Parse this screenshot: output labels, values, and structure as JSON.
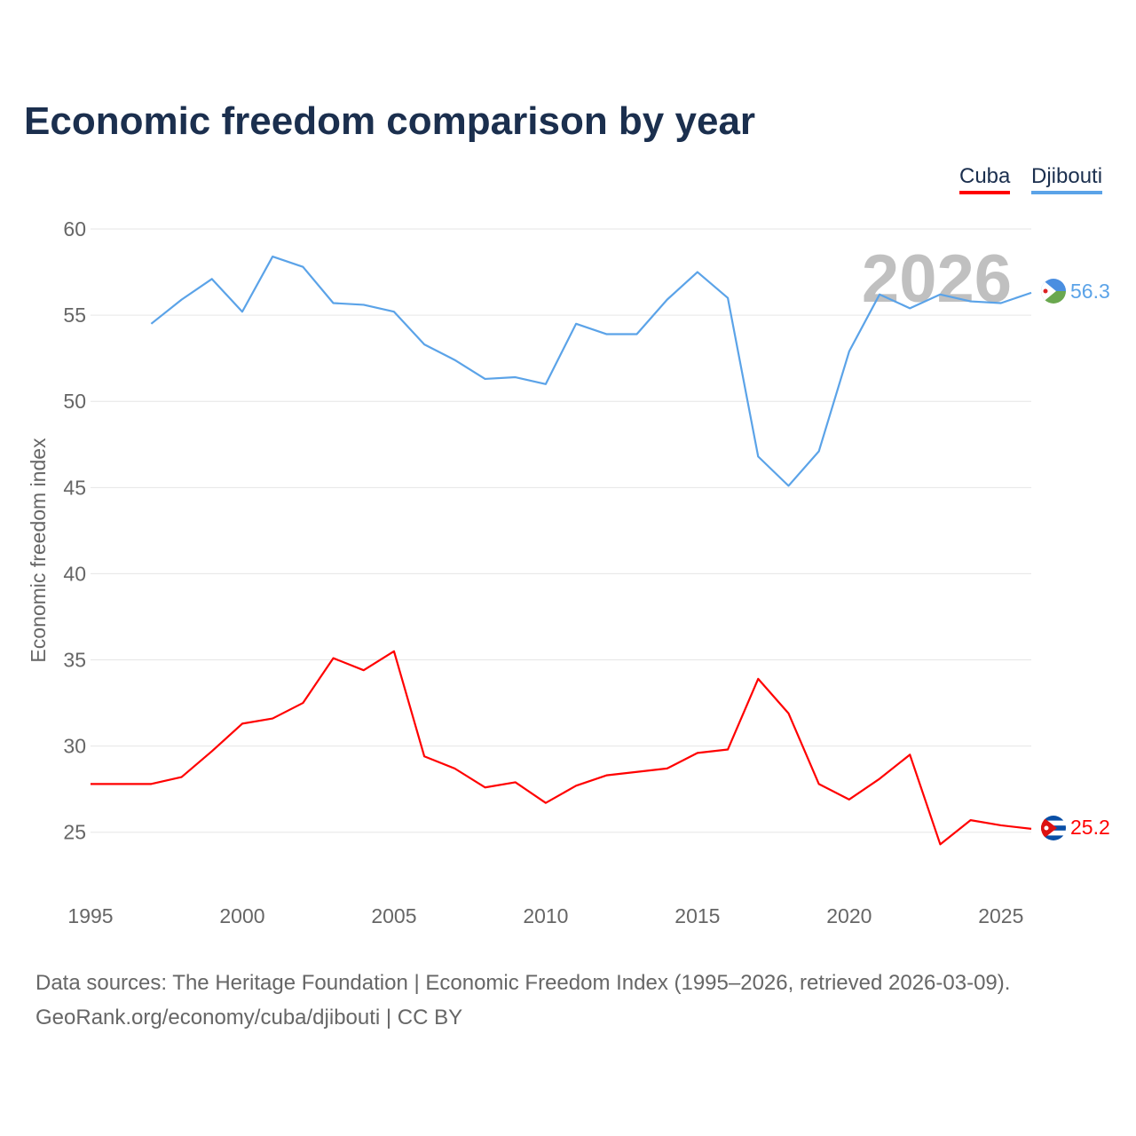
{
  "chart_data": {
    "type": "line",
    "title": "Economic freedom comparison by year",
    "xlabel": "",
    "ylabel": "Economic freedom index",
    "xlim": [
      1995,
      2026
    ],
    "ylim": [
      22,
      60
    ],
    "yticks": [
      25,
      30,
      35,
      40,
      45,
      50,
      55,
      60
    ],
    "xticks": [
      1995,
      2000,
      2005,
      2010,
      2015,
      2020,
      2025
    ],
    "grid": true,
    "legend_position": "top-right",
    "year_watermark": "2026",
    "series": [
      {
        "name": "Cuba",
        "color": "#ff0000",
        "end_label": "25.2",
        "x": [
          1995,
          1996,
          1997,
          1998,
          1999,
          2000,
          2001,
          2002,
          2003,
          2004,
          2005,
          2006,
          2007,
          2008,
          2009,
          2010,
          2011,
          2012,
          2013,
          2014,
          2015,
          2016,
          2017,
          2018,
          2019,
          2020,
          2021,
          2022,
          2023,
          2024,
          2025,
          2026
        ],
        "values": [
          27.8,
          27.8,
          27.8,
          28.2,
          29.7,
          31.3,
          31.6,
          32.5,
          35.1,
          34.4,
          35.5,
          29.4,
          28.7,
          27.6,
          27.9,
          26.7,
          27.7,
          28.3,
          28.5,
          28.7,
          29.6,
          29.8,
          33.9,
          31.9,
          27.8,
          26.9,
          28.1,
          29.5,
          24.3,
          25.7,
          25.4,
          25.2
        ]
      },
      {
        "name": "Djibouti",
        "color": "#5ba3e8",
        "end_label": "56.3",
        "x": [
          1997,
          1998,
          1999,
          2000,
          2001,
          2002,
          2003,
          2004,
          2005,
          2006,
          2007,
          2008,
          2009,
          2010,
          2011,
          2012,
          2013,
          2014,
          2015,
          2016,
          2017,
          2018,
          2019,
          2020,
          2021,
          2022,
          2023,
          2024,
          2025,
          2026
        ],
        "values": [
          54.5,
          55.9,
          57.1,
          55.2,
          58.4,
          57.8,
          55.7,
          55.6,
          55.2,
          53.3,
          52.4,
          51.3,
          51.4,
          51.0,
          54.5,
          53.9,
          53.9,
          55.9,
          57.5,
          56.0,
          46.8,
          45.1,
          47.1,
          52.9,
          56.2,
          55.4,
          56.2,
          55.8,
          55.7,
          56.3
        ]
      }
    ]
  },
  "source_line1": "Data sources: The Heritage Foundation | Economic Freedom Index (1995–2026, retrieved 2026-03-09).",
  "source_line2": "GeoRank.org/economy/cuba/djibouti | CC BY"
}
